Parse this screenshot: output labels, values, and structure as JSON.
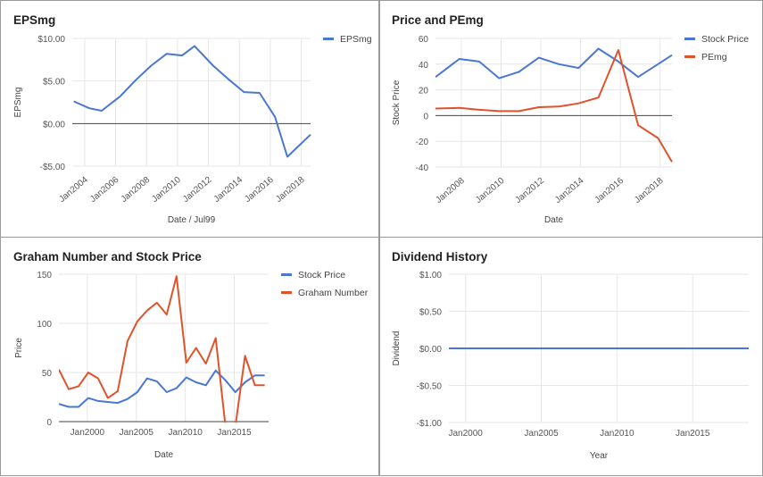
{
  "panels": [
    {
      "title": "EPSmg",
      "chart_data": {
        "type": "line",
        "xlabel": "Date / Jul99",
        "ylabel": "EPSmg",
        "ylim": [
          -5,
          10
        ],
        "xlim": [
          2003.2,
          2018.6
        ],
        "y_ticks": [
          10,
          5,
          0,
          -5
        ],
        "y_tick_labels": [
          "$10.00",
          "$5.00",
          "$0.00",
          "-$5.00"
        ],
        "x_ticks": [
          2004,
          2006,
          2008,
          2010,
          2012,
          2014,
          2016,
          2018
        ],
        "x_tick_labels": [
          "Jan2004",
          "Jan2006",
          "Jan2008",
          "Jan2010",
          "Jan2012",
          "Jan2014",
          "Jan2016",
          "Jan2018"
        ],
        "x_tick_rotated": true,
        "grid": true,
        "legend_position": "top-right",
        "series": [
          {
            "name": "EPSmg",
            "color": "#4a76d4",
            "x": [
              2003.3,
              2004.3,
              2005.1,
              2006.3,
              2007.3,
              2008.3,
              2009.3,
              2010.3,
              2011.1,
              2012.3,
              2013.3,
              2014.3,
              2015.3,
              2016.3,
              2017.1,
              2018.6
            ],
            "y": [
              2.6,
              1.8,
              1.5,
              3.2,
              5.1,
              6.8,
              8.2,
              8.0,
              9.1,
              6.8,
              5.2,
              3.7,
              3.6,
              0.8,
              -3.9,
              -1.3
            ]
          }
        ]
      }
    },
    {
      "title": "Price and PEmg",
      "chart_data": {
        "type": "line",
        "xlabel": "Date",
        "ylabel": "Stock Price",
        "ylim": [
          -40,
          60
        ],
        "xlim": [
          2006.7,
          2018.6
        ],
        "y_ticks": [
          60,
          40,
          20,
          0,
          -20,
          -40
        ],
        "y_tick_labels": [
          "60",
          "40",
          "20",
          "0",
          "-20",
          "-40"
        ],
        "x_ticks": [
          2008,
          2010,
          2012,
          2014,
          2016,
          2018
        ],
        "x_tick_labels": [
          "Jan2008",
          "Jan2010",
          "Jan2012",
          "Jan2014",
          "Jan2016",
          "Jan2018"
        ],
        "x_tick_rotated": true,
        "grid": true,
        "legend_position": "top-right",
        "series": [
          {
            "name": "Stock Price",
            "color": "#4a76d4",
            "x": [
              2006.7,
              2007.9,
              2008.9,
              2009.9,
              2010.9,
              2011.9,
              2012.9,
              2013.9,
              2014.9,
              2015.9,
              2016.9,
              2018.6
            ],
            "y": [
              30,
              44,
              42,
              29,
              34,
              45,
              40,
              37,
              52,
              42,
              30,
              47
            ]
          },
          {
            "name": "PEmg",
            "color": "#e0532a",
            "x": [
              2006.7,
              2007.9,
              2008.9,
              2009.9,
              2010.9,
              2011.9,
              2012.9,
              2013.9,
              2014.9,
              2015.9,
              2016.9,
              2017.9,
              2018.6
            ],
            "y": [
              5.5,
              6,
              4.5,
              3.5,
              3.5,
              6.5,
              7,
              9.5,
              14,
              51,
              -7.5,
              -17.5,
              -36
            ]
          }
        ]
      }
    },
    {
      "title": "Graham Number and Stock Price",
      "chart_data": {
        "type": "line",
        "xlabel": "Date",
        "ylabel": "Price",
        "ylim": [
          0,
          150
        ],
        "xlim": [
          1997.1,
          2018.5
        ],
        "y_ticks": [
          150,
          100,
          50,
          0
        ],
        "y_tick_labels": [
          "150",
          "100",
          "50",
          "0"
        ],
        "x_ticks": [
          2000,
          2005,
          2010,
          2015
        ],
        "x_tick_labels": [
          "Jan2000",
          "Jan2005",
          "Jan2010",
          "Jan2015"
        ],
        "x_tick_rotated": false,
        "grid": true,
        "legend_position": "top-right",
        "series": [
          {
            "name": "Stock Price",
            "color": "#4a76d4",
            "x": [
              1997.1,
              1998.1,
              1999.1,
              2000.1,
              2001.1,
              2002.1,
              2003.1,
              2004.1,
              2005.1,
              2006.1,
              2007.1,
              2008.1,
              2009.1,
              2010.1,
              2011.1,
              2012.1,
              2013.1,
              2014.1,
              2015.1,
              2016.1,
              2017.1,
              2018.1
            ],
            "y": [
              18,
              15,
              15,
              24,
              21,
              20,
              19,
              23,
              30,
              44,
              41,
              30,
              34,
              45,
              40,
              37,
              52,
              42,
              30,
              40,
              47,
              47
            ]
          },
          {
            "name": "Graham Number",
            "color": "#e0532a",
            "x": [
              1997.1,
              1998.1,
              1999.1,
              2000.1,
              2001.1,
              2002.1,
              2003.1,
              2004.1,
              2005.1,
              2006.1,
              2007.1,
              2008.1,
              2009.1,
              2010.1,
              2011.1,
              2012.1,
              2013.1,
              2014.1,
              2015.1,
              2016.1,
              2017.1,
              2018.1
            ],
            "y": [
              53,
              33,
              36,
              50,
              44,
              24,
              31,
              82,
              102,
              113,
              121,
              109,
              148,
              60,
              75,
              59,
              85,
              -5,
              -5,
              67,
              37,
              37
            ]
          }
        ]
      }
    },
    {
      "title": "Dividend History",
      "chart_data": {
        "type": "line",
        "xlabel": "Year",
        "ylabel": "Dividend",
        "ylim": [
          -1,
          1
        ],
        "xlim": [
          1998.9,
          2018.7
        ],
        "y_ticks": [
          1,
          0.5,
          0,
          -0.5,
          -1
        ],
        "y_tick_labels": [
          "$1.00",
          "$0.50",
          "$0.00",
          "-$0.50",
          "-$1.00"
        ],
        "x_ticks": [
          2000,
          2005,
          2010,
          2015
        ],
        "x_tick_labels": [
          "Jan2000",
          "Jan2005",
          "Jan2010",
          "Jan2015"
        ],
        "x_tick_rotated": false,
        "grid": true,
        "legend_position": "none",
        "series": [
          {
            "name": "",
            "color": "#4a76d4",
            "x": [
              1998.9,
              2018.7
            ],
            "y": [
              0,
              0
            ]
          }
        ]
      }
    }
  ]
}
